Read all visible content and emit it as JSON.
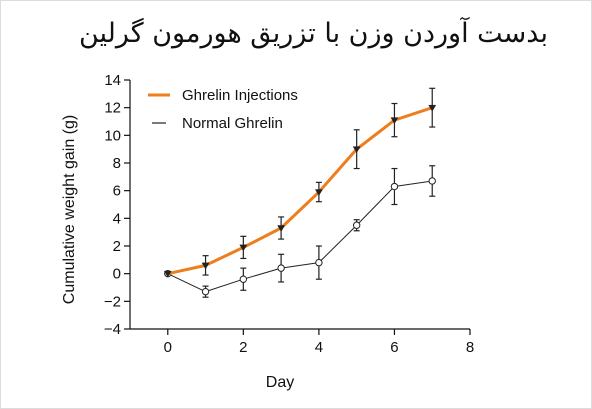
{
  "title": "بدست آوردن وزن با تزریق هورمون گرلین",
  "colors": {
    "ghrelin_injections": "#ee7d1b",
    "normal_ghrelin": "#222222",
    "axis": "#111111"
  },
  "chart_data": {
    "type": "line",
    "xlabel": "Day",
    "ylabel": "Cumulative weight gain (g)",
    "xlim": [
      -1,
      8
    ],
    "ylim": [
      -4,
      14
    ],
    "x_ticks": [
      0,
      2,
      4,
      6,
      8
    ],
    "y_ticks": [
      -4,
      -2,
      0,
      2,
      4,
      6,
      8,
      10,
      12,
      14
    ],
    "legend_position": "top-left",
    "grid": false,
    "series": [
      {
        "name": "Ghrelin Injections",
        "x": [
          0,
          1,
          2,
          3,
          4,
          5,
          6,
          7
        ],
        "y": [
          0,
          0.6,
          1.9,
          3.3,
          5.9,
          9.0,
          11.1,
          12.0
        ],
        "err": [
          0,
          0.7,
          0.8,
          0.8,
          0.7,
          1.4,
          1.2,
          1.4
        ]
      },
      {
        "name": "Normal Ghrelin",
        "x": [
          0,
          1,
          2,
          3,
          4,
          5,
          6,
          7
        ],
        "y": [
          0,
          -1.3,
          -0.4,
          0.4,
          0.8,
          3.5,
          6.3,
          6.7
        ],
        "err": [
          0,
          0.4,
          0.8,
          1.0,
          1.2,
          0.4,
          1.3,
          1.1
        ]
      }
    ]
  }
}
